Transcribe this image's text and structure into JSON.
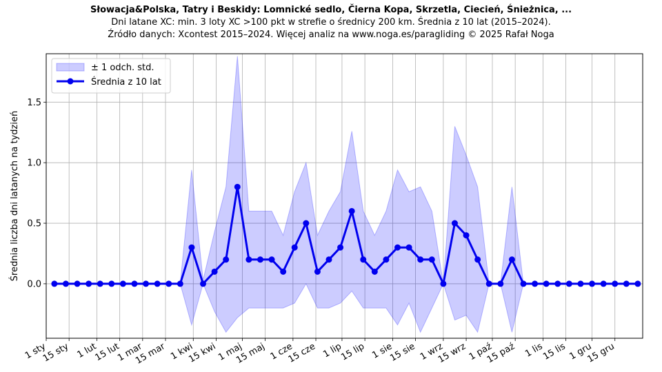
{
  "chart_data": {
    "type": "line",
    "title": "Słowacja&Polska, Tatry i Beskidy: Lomnické sedlo, Čierna Kopa, Skrzetla, Ciecień, Śnieżnica, ...",
    "subtitle_lines": [
      "Dni latane XC: min. 3 loty XC >100 pkt w strefie o średnicy 200 km. Średnia z 10 lat (2015–2024).",
      "Źródło danych: Xcontest 2015–2024. Więcej analiz na www.noga.es/paragliding © 2025 Rafał Noga"
    ],
    "xlabel": "",
    "ylabel": "Średnia liczba dni latanych na tydzień",
    "x_tick_labels": [
      "1 sty",
      "15 sty",
      "1 lut",
      "15 lut",
      "1 mar",
      "15 mar",
      "1 kwi",
      "15 kwi",
      "1 maj",
      "15 maj",
      "1 cze",
      "15 cze",
      "1 lip",
      "15 lip",
      "1 sie",
      "15 sie",
      "1 wrz",
      "15 wrz",
      "1 paź",
      "15 paź",
      "1 lis",
      "15 lis",
      "1 gru",
      "15 gru"
    ],
    "x_tick_day_of_year": [
      1,
      15,
      32,
      46,
      60,
      74,
      91,
      105,
      121,
      135,
      152,
      166,
      182,
      196,
      213,
      227,
      244,
      258,
      274,
      288,
      305,
      319,
      335,
      349
    ],
    "y_ticks": [
      0.0,
      0.5,
      1.0,
      1.5
    ],
    "y_tick_labels": [
      "0.0",
      "0.5",
      "1.0",
      "1.5"
    ],
    "xlim_day_of_year": [
      1,
      366
    ],
    "ylim": [
      -0.45,
      1.9
    ],
    "grid": true,
    "legend_position": "top-left",
    "series": [
      {
        "name": "Średnia z 10 lat",
        "color": "#0000ee",
        "marker": "circle",
        "x_day_of_year": [
          6,
          13,
          20,
          27,
          34,
          41,
          48,
          55,
          62,
          69,
          76,
          83,
          90,
          97,
          104,
          111,
          118,
          125,
          132,
          139,
          146,
          153,
          160,
          167,
          174,
          181,
          188,
          195,
          202,
          209,
          216,
          223,
          230,
          237,
          244,
          251,
          258,
          265,
          272,
          279,
          286,
          293,
          300,
          307,
          314,
          321,
          328,
          335,
          342,
          349,
          356,
          363
        ],
        "values": [
          0,
          0,
          0,
          0,
          0,
          0,
          0,
          0,
          0,
          0,
          0,
          0,
          0.3,
          0,
          0.1,
          0.2,
          0.8,
          0.2,
          0.2,
          0.2,
          0.1,
          0.3,
          0.5,
          0.1,
          0.2,
          0.3,
          0.6,
          0.2,
          0.1,
          0.2,
          0.3,
          0.3,
          0.2,
          0.2,
          0,
          0.5,
          0.4,
          0.2,
          0,
          0,
          0.2,
          0,
          0,
          0,
          0,
          0,
          0,
          0,
          0,
          0,
          0,
          0
        ]
      },
      {
        "name": "± 1 odch. std.",
        "type": "band",
        "color": "#0000ff",
        "opacity": 0.2,
        "upper": [
          0,
          0,
          0,
          0,
          0,
          0,
          0,
          0,
          0,
          0,
          0,
          0,
          0.94,
          0.03,
          0.43,
          0.8,
          1.88,
          0.6,
          0.6,
          0.6,
          0.4,
          0.76,
          1.0,
          0.4,
          0.6,
          0.76,
          1.26,
          0.6,
          0.4,
          0.6,
          0.94,
          0.76,
          0.8,
          0.6,
          0.0,
          1.3,
          1.06,
          0.8,
          0,
          0,
          0.8,
          0,
          0,
          0,
          0,
          0,
          0,
          0,
          0,
          0,
          0,
          0
        ],
        "lower": [
          0,
          0,
          0,
          0,
          0,
          0,
          0,
          0,
          0,
          0,
          0,
          0,
          -0.34,
          0,
          -0.23,
          -0.4,
          -0.28,
          -0.2,
          -0.2,
          -0.2,
          -0.2,
          -0.16,
          0,
          -0.2,
          -0.2,
          -0.16,
          -0.06,
          -0.2,
          -0.2,
          -0.2,
          -0.34,
          -0.16,
          -0.4,
          -0.2,
          0,
          -0.3,
          -0.26,
          -0.4,
          0,
          0,
          -0.4,
          0,
          0,
          0,
          0,
          0,
          0,
          0,
          0,
          0,
          0,
          0
        ]
      }
    ]
  }
}
